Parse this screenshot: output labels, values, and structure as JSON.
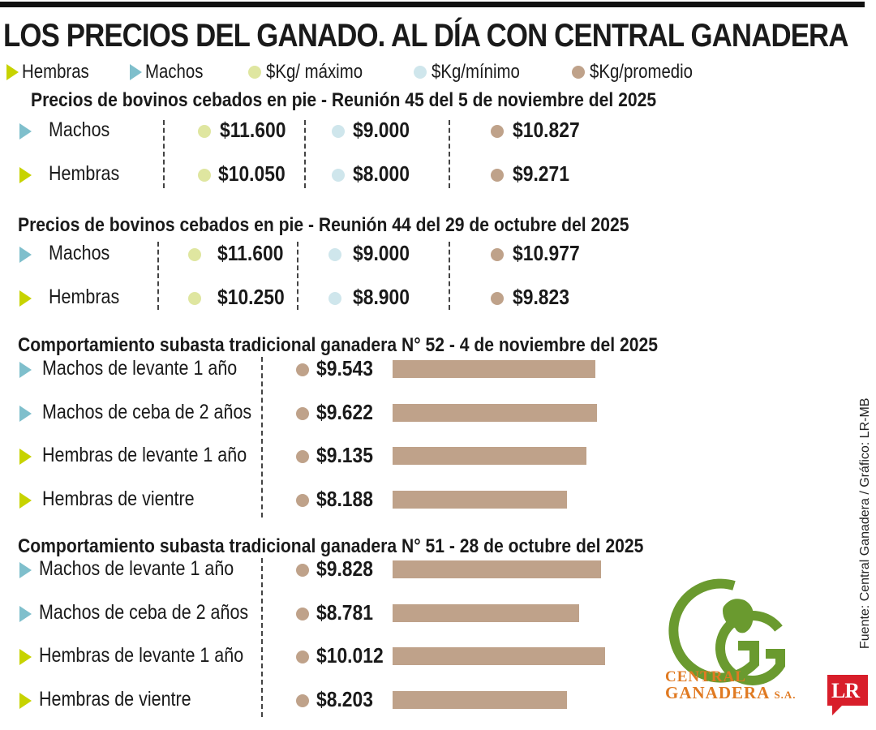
{
  "title": "LOS PRECIOS DEL GANADO. AL DÍA CON CENTRAL GANADERA",
  "legend": {
    "hembras": "Hembras",
    "machos": "Machos",
    "maximo": "$Kg/ máximo",
    "minimo": "$Kg/mínimo",
    "promedio": "$Kg/promedio"
  },
  "colors": {
    "hembras": "#c7d300",
    "machos": "#7fbfcc",
    "maximo": "#dfe6a0",
    "minimo": "#cfe6ec",
    "promedio": "#bfa28a",
    "bar": "#bfa28a",
    "logo_green": "#6a9a2f",
    "logo_orange": "#e07a22",
    "lr_red": "#d81e2a"
  },
  "source": "Fuente: Central Ganadera / Gráfico: LR-MB",
  "brand": {
    "lr": "LR",
    "logo_line1": "CENTRAL",
    "logo_line2": "GANADERA",
    "logo_suffix": "S.A."
  },
  "chart_data": [
    {
      "type": "table",
      "title": "Precios de bovinos cebados en pie - Reunión 45 del 5 de noviembre del 2025",
      "columns": [
        "$Kg/ máximo",
        "$Kg/mínimo",
        "$Kg/promedio"
      ],
      "rows": [
        {
          "label": "Machos",
          "kind": "machos",
          "max": "$11.600",
          "min": "$9.000",
          "avg": "$10.827"
        },
        {
          "label": "Hembras",
          "kind": "hembras",
          "max": "$10.050",
          "min": "$8.000",
          "avg": "$9.271"
        }
      ]
    },
    {
      "type": "table",
      "title": "Precios de bovinos cebados en pie - Reunión 44 del 29 de octubre del 2025",
      "columns": [
        "$Kg/ máximo",
        "$Kg/mínimo",
        "$Kg/promedio"
      ],
      "rows": [
        {
          "label": "Machos",
          "kind": "machos",
          "max": "$11.600",
          "min": "$9.000",
          "avg": "$10.977"
        },
        {
          "label": "Hembras",
          "kind": "hembras",
          "max": "$10.250",
          "min": "$8.900",
          "avg": "$9.823"
        }
      ]
    },
    {
      "type": "bar",
      "title": "Comportamiento subasta tradicional ganadera N° 52 - 4 de noviembre del 2025",
      "categories": [
        "Machos de levante 1 año",
        "Machos de ceba de 2 años",
        "Hembras de levante 1 año",
        "Hembras de vientre"
      ],
      "kinds": [
        "machos",
        "machos",
        "hembras",
        "hembras"
      ],
      "values": [
        9543,
        9622,
        9135,
        8188
      ],
      "value_labels": [
        "$9.543",
        "$9.622",
        "$9.135",
        "$8.188"
      ]
    },
    {
      "type": "bar",
      "title": "Comportamiento subasta tradicional ganadera N° 51 - 28 de octubre del 2025",
      "categories": [
        "Machos de levante 1 año",
        "Machos de ceba de 2 años",
        "Hembras de levante 1 año",
        "Hembras de vientre"
      ],
      "kinds": [
        "machos",
        "machos",
        "hembras",
        "hembras"
      ],
      "values": [
        9828,
        8781,
        10012,
        8203
      ],
      "value_labels": [
        "$9.828",
        "$8.781",
        "$10.012",
        "$8.203"
      ]
    }
  ]
}
